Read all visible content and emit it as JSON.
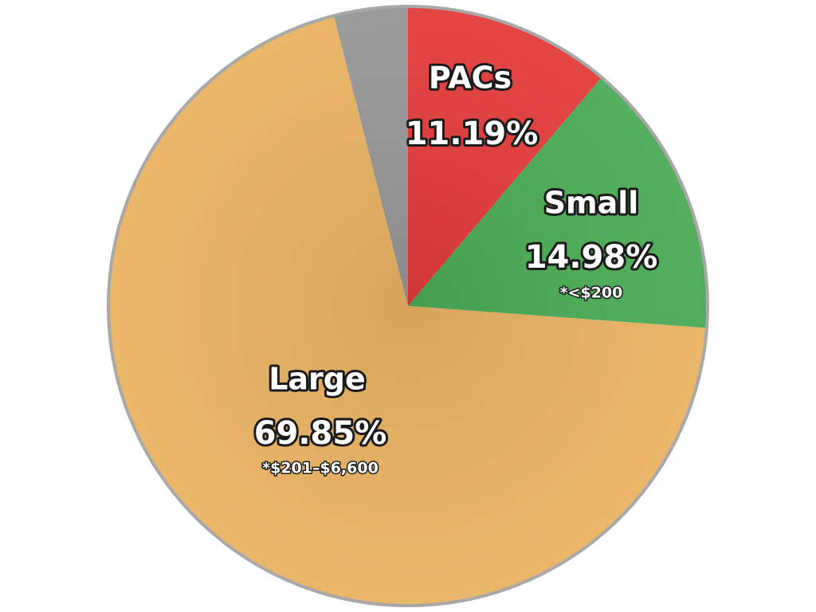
{
  "chart_data": {
    "type": "pie",
    "categories": [
      "PACs",
      "Small",
      "Large",
      null
    ],
    "values": [
      11.19,
      14.98,
      69.85,
      3.98
    ],
    "value_labels": [
      "11.19%",
      "14.98%",
      "69.85%",
      null
    ],
    "notes": [
      null,
      "*<$200",
      "*$201–$6,600",
      null
    ],
    "colors": [
      "#e23b3b",
      "#4aab55",
      "#e8b262",
      "#969696"
    ]
  }
}
